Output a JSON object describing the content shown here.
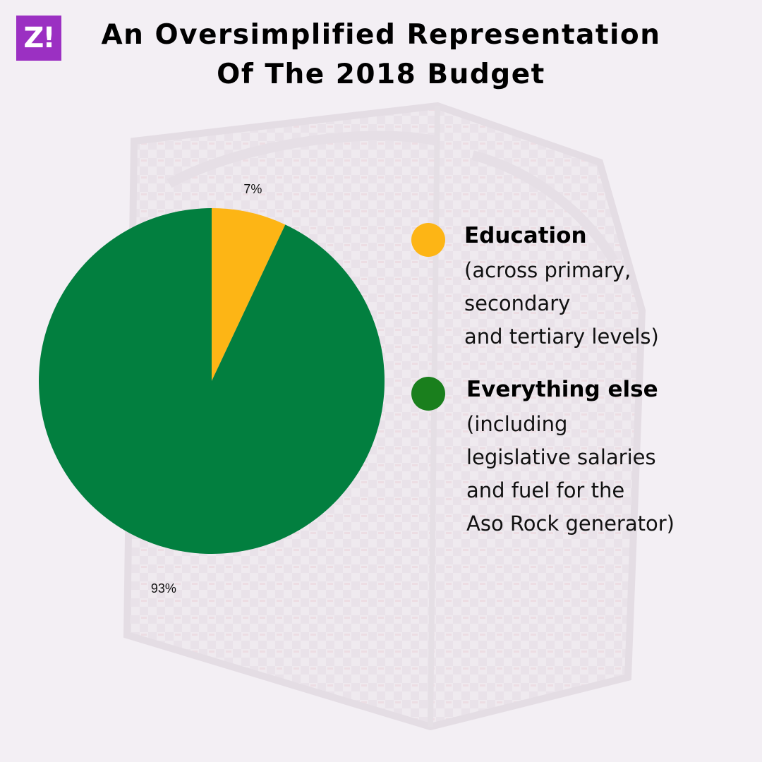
{
  "logo": {
    "text": "Z!",
    "color": "#9b30c2"
  },
  "title": {
    "line1": "An Oversimplified Representation",
    "line2": "Of The 2018 Budget"
  },
  "chart_data": {
    "type": "pie",
    "slices": [
      {
        "label": "Education",
        "value": 7,
        "value_label": "7%",
        "color": "#fdb515"
      },
      {
        "label": "Everything else",
        "value": 93,
        "value_label": "93%",
        "color": "#027f3f"
      }
    ]
  },
  "legend": [
    {
      "title": "Education",
      "desc": [
        "(across primary,",
        "secondary",
        "and tertiary levels)"
      ],
      "color": "#fdb515"
    },
    {
      "title": "Everything else",
      "desc": [
        "(including",
        "legislative salaries",
        "and fuel for the",
        "Aso Rock generator)"
      ],
      "color": "#1a7f1d"
    }
  ]
}
